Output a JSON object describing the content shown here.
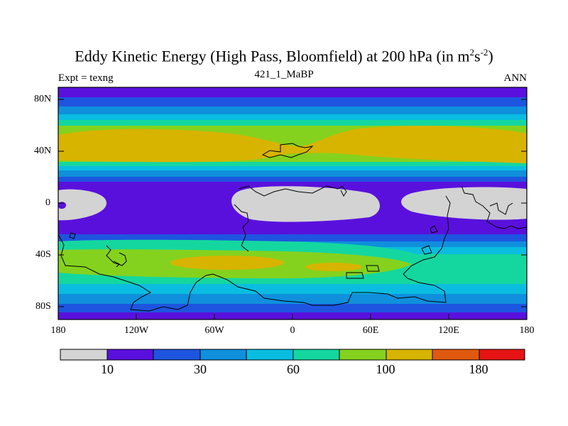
{
  "title": {
    "main": "Eddy Kinetic Energy (High Pass, Bloomfield) at 200 hPa (in m",
    "sup1": "2",
    "mid": "s",
    "sup2": "-2",
    "end": ")"
  },
  "left_string": "Expt = texng",
  "center_string": "421_1_MaBP",
  "right_string": "ANN",
  "lat_ticks": [
    "80N",
    "40N",
    "0",
    "40S",
    "80S"
  ],
  "lon_ticks": [
    "180",
    "120W",
    "60W",
    "0",
    "60E",
    "120E",
    "180"
  ],
  "colorbar": {
    "colors": [
      "#d3d3d3",
      "#5a10dd",
      "#1e55e0",
      "#0f8fdc",
      "#0abde0",
      "#14d7a0",
      "#84d21e",
      "#d7b400",
      "#e1580f",
      "#e61414"
    ],
    "labels": [
      "10",
      "30",
      "60",
      "100",
      "180"
    ]
  },
  "chart_data": {
    "type": "heatmap",
    "title": "Eddy Kinetic Energy (High Pass, Bloomfield) at 200 hPa (in m^2 s^-2)",
    "subtitle": "421_1_MaBP",
    "left_label": "Expt = texng",
    "right_label": "ANN",
    "x_range": [
      -180,
      180
    ],
    "y_range": [
      -90,
      90
    ],
    "x_ticks": [
      "180",
      "120W",
      "60W",
      "0",
      "60E",
      "120E",
      "180"
    ],
    "y_ticks": [
      "80N",
      "40N",
      "0",
      "40S",
      "80S"
    ],
    "contour_levels": [
      10,
      20,
      30,
      40,
      60,
      80,
      100,
      140,
      180
    ],
    "colorbar_labels": [
      "10",
      "30",
      "60",
      "100",
      "180"
    ]
  }
}
